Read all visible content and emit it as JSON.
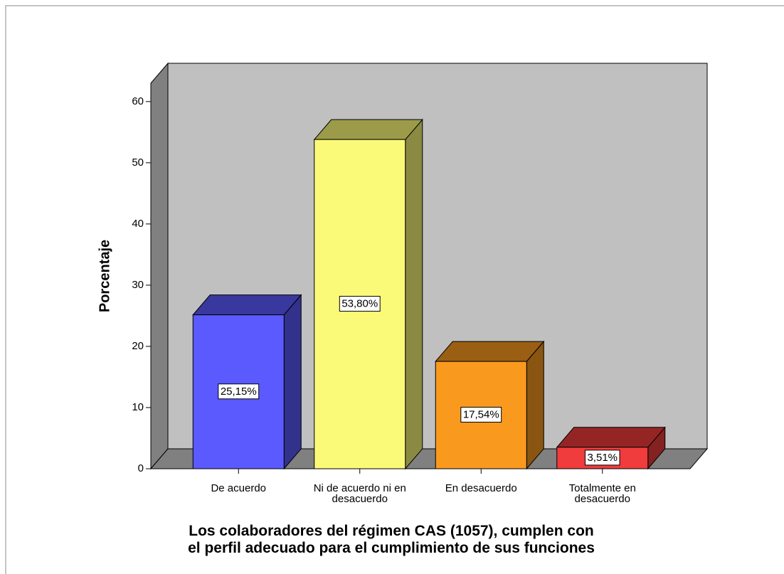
{
  "chart_data": {
    "type": "bar3d",
    "y_label": "Porcentaje",
    "x_label": "Los colaboradores del régimen CAS (1057), cumplen con\nel perfil adecuado para el cumplimiento de sus funciones",
    "categories": [
      "De acuerdo",
      "Ni de acuerdo ni en\ndesacuerdo",
      "En desacuerdo",
      "Totalmente en\ndesacuerdo"
    ],
    "values": [
      25.15,
      53.8,
      17.54,
      3.51
    ],
    "value_labels": [
      "25,15%",
      "53,80%",
      "17,54%",
      "3,51%"
    ],
    "colors": [
      "#5a5aff",
      "#fafa78",
      "#f99a1e",
      "#f03c3c"
    ],
    "ylim": [
      0,
      63
    ],
    "yticks": [
      0,
      10,
      20,
      30,
      40,
      50,
      60
    ]
  }
}
